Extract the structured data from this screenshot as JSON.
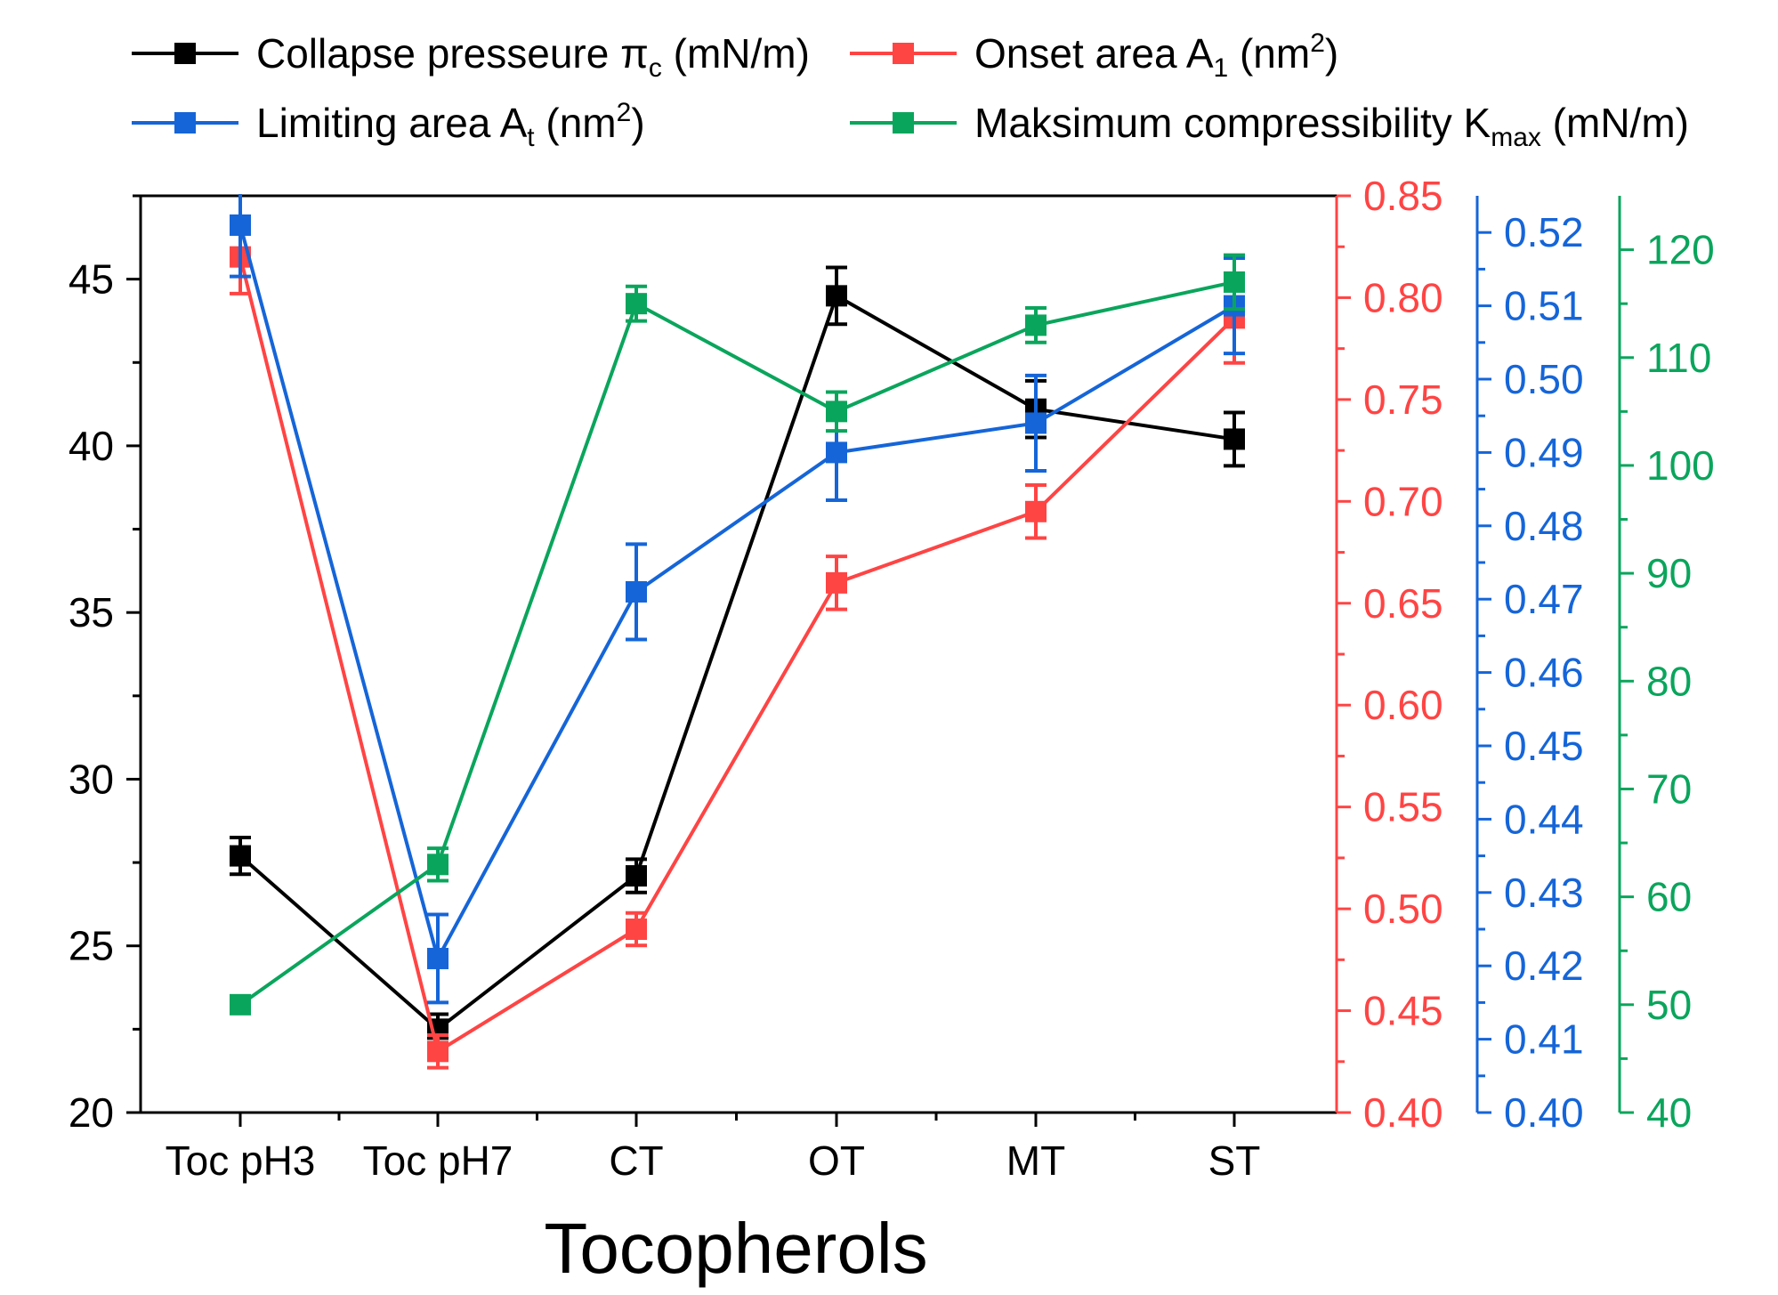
{
  "chart_data": {
    "type": "line",
    "title": "",
    "xlabel": "Tocopherols",
    "categories": [
      "Toc pH3",
      "Toc pH7",
      "CT",
      "OT",
      "MT",
      "ST"
    ],
    "axes": {
      "left": {
        "ylim": [
          20,
          47.5
        ],
        "ticks": [
          "20",
          "25",
          "30",
          "35",
          "40",
          "45"
        ],
        "color": "#000000"
      },
      "right1": {
        "ylim": [
          0.4,
          0.85
        ],
        "ticks": [
          "0.40",
          "0.45",
          "0.50",
          "0.55",
          "0.60",
          "0.65",
          "0.70",
          "0.75",
          "0.80",
          "0.85"
        ],
        "color": "#ff4444"
      },
      "right2": {
        "ylim": [
          0.4,
          0.525
        ],
        "ticks": [
          "0.40",
          "0.41",
          "0.42",
          "0.43",
          "0.44",
          "0.45",
          "0.46",
          "0.47",
          "0.48",
          "0.49",
          "0.50",
          "0.51",
          "0.52"
        ],
        "color": "#1565d8"
      },
      "right3": {
        "ylim": [
          40,
          125
        ],
        "ticks": [
          "40",
          "50",
          "60",
          "70",
          "80",
          "90",
          "100",
          "110",
          "120"
        ],
        "color": "#0aa55c"
      }
    },
    "series": [
      {
        "name": "Collapse presseure πc (mN/m)",
        "legend_main": "Collapse presseure π",
        "legend_sub": "c",
        "legend_sup": "",
        "legend_tail": " (mN/m)",
        "axis": "left",
        "color": "#000000",
        "values": [
          27.7,
          22.5,
          27.1,
          44.5,
          41.1,
          40.2
        ],
        "errors": [
          0.55,
          0.45,
          0.5,
          0.85,
          0.85,
          0.8
        ]
      },
      {
        "name": "Onset area A1 (nm2)",
        "legend_main": "Onset area A",
        "legend_sub": "1",
        "legend_sup": "2",
        "legend_tail": " (nm",
        "axis": "right1",
        "color": "#ff4444",
        "values": [
          0.82,
          0.43,
          0.49,
          0.66,
          0.695,
          0.79
        ],
        "errors": [
          0.018,
          0.008,
          0.008,
          0.013,
          0.013,
          0.022
        ]
      },
      {
        "name": "Limiting area At (nm2)",
        "legend_main": "Limiting area A",
        "legend_sub": "t",
        "legend_sup": "2",
        "legend_tail": " (nm",
        "axis": "right2",
        "color": "#1565d8",
        "values": [
          0.521,
          0.421,
          0.471,
          0.49,
          0.494,
          0.51
        ],
        "errors": [
          0.007,
          0.006,
          0.0065,
          0.0065,
          0.0065,
          0.0065
        ]
      },
      {
        "name": "Maksimum compressibility Kmax (mN/m)",
        "legend_main": "Maksimum compressibility K",
        "legend_sub": "max",
        "legend_sup": "",
        "legend_tail": " (mN/m)",
        "axis": "right3",
        "color": "#0aa55c",
        "values": [
          50,
          63,
          115,
          105,
          113,
          117
        ],
        "errors": [
          0.8,
          1.5,
          1.6,
          1.8,
          1.6,
          2.5
        ]
      }
    ]
  }
}
